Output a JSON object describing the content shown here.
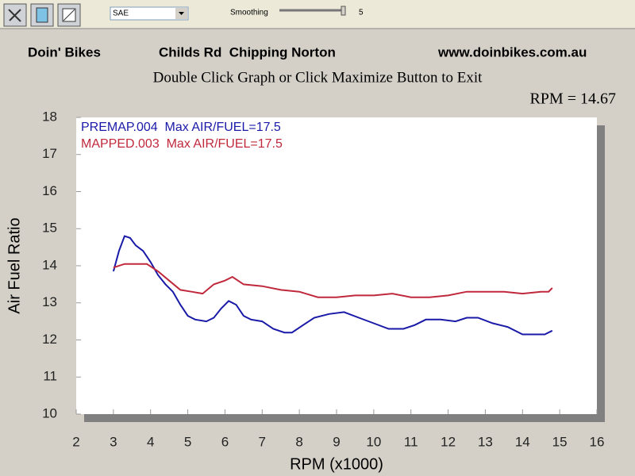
{
  "toolbar": {
    "dropdown": "SAE",
    "smoothing_label": "Smoothing",
    "smoothing_value": 5
  },
  "header": {
    "left": "Doin' Bikes",
    "center": "Childs Rd  Chipping Norton",
    "right": "www.doinbikes.com.au",
    "instruction": "Double Click Graph or Click Maximize Button to Exit",
    "readout": "RPM = 14.67"
  },
  "chart_data": {
    "type": "line",
    "x_label": "RPM (x1000)",
    "y_label": "Air Fuel Ratio",
    "xlim": [
      2,
      16
    ],
    "xticks": [
      2,
      3,
      4,
      5,
      6,
      7,
      8,
      9,
      10,
      11,
      12,
      13,
      14,
      15,
      16
    ],
    "ylim": [
      10,
      18
    ],
    "yticks": [
      10,
      11,
      12,
      13,
      14,
      15,
      16,
      17,
      18
    ],
    "grid": false,
    "series": [
      {
        "name": "PREMAP.004  Max AIR/FUEL=17.5",
        "color": "#1a1aa8",
        "x": [
          3.0,
          3.15,
          3.3,
          3.45,
          3.6,
          3.8,
          4.0,
          4.2,
          4.4,
          4.6,
          4.8,
          5.0,
          5.2,
          5.5,
          5.7,
          5.9,
          6.1,
          6.3,
          6.5,
          6.7,
          7.0,
          7.3,
          7.6,
          7.8,
          8.1,
          8.4,
          8.8,
          9.2,
          9.6,
          10.0,
          10.4,
          10.8,
          11.1,
          11.4,
          11.8,
          12.2,
          12.5,
          12.8,
          13.2,
          13.6,
          14.0,
          14.3,
          14.6,
          14.8
        ],
        "values": [
          13.85,
          14.4,
          14.8,
          14.75,
          14.55,
          14.4,
          14.1,
          13.75,
          13.5,
          13.3,
          12.95,
          12.65,
          12.55,
          12.5,
          12.6,
          12.85,
          13.05,
          12.95,
          12.65,
          12.55,
          12.5,
          12.3,
          12.2,
          12.2,
          12.4,
          12.6,
          12.7,
          12.75,
          12.6,
          12.45,
          12.3,
          12.3,
          12.4,
          12.55,
          12.55,
          12.5,
          12.6,
          12.6,
          12.45,
          12.35,
          12.15,
          12.15,
          12.15,
          12.25
        ]
      },
      {
        "name": "MAPPED.003  Max AIR/FUEL=17.5",
        "color": "#c0283c",
        "x": [
          3.0,
          3.3,
          3.6,
          3.9,
          4.2,
          4.5,
          4.8,
          5.1,
          5.4,
          5.7,
          6.0,
          6.2,
          6.5,
          7.0,
          7.5,
          8.0,
          8.5,
          9.0,
          9.5,
          10.0,
          10.5,
          11.0,
          11.5,
          12.0,
          12.5,
          13.0,
          13.5,
          14.0,
          14.5,
          14.7,
          14.8
        ],
        "values": [
          13.95,
          14.05,
          14.05,
          14.05,
          13.85,
          13.6,
          13.35,
          13.3,
          13.25,
          13.5,
          13.6,
          13.7,
          13.5,
          13.45,
          13.35,
          13.3,
          13.15,
          13.15,
          13.2,
          13.2,
          13.25,
          13.15,
          13.15,
          13.2,
          13.3,
          13.3,
          13.3,
          13.25,
          13.3,
          13.3,
          13.4
        ]
      }
    ]
  }
}
